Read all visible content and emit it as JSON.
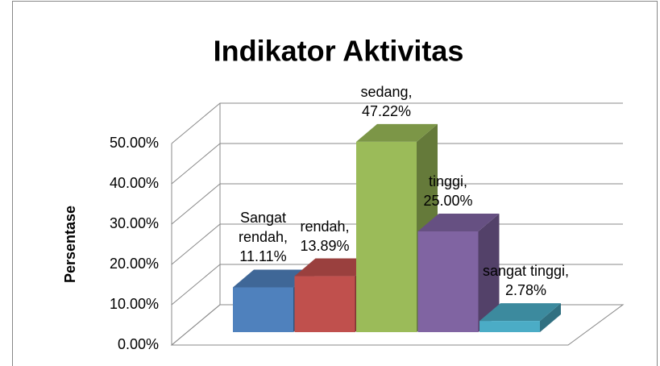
{
  "chart_data": {
    "type": "bar3d",
    "title": "Indikator Aktivitas",
    "y_label": "Persentase",
    "values": [
      11.11,
      13.89,
      47.22,
      25.0,
      2.78
    ],
    "value_labels": [
      "Sangat rendah, 11.11%",
      "rendah, 13.89%",
      "sedang, 47.22%",
      "tinggi, 25.00%",
      "sangat tinggi, 2.78%"
    ],
    "colors": [
      "#4f81bd",
      "#c0504d",
      "#9bbb59",
      "#8064a2",
      "#4bacc6"
    ],
    "ylim": [
      0,
      50
    ],
    "yticks": [
      {
        "value": 0,
        "label": "0.00%"
      },
      {
        "value": 10,
        "label": "10.00%"
      },
      {
        "value": 20,
        "label": "20.00%"
      },
      {
        "value": 30,
        "label": "30.00%"
      },
      {
        "value": 40,
        "label": "40.00%"
      },
      {
        "value": 50,
        "label": "50.00%"
      }
    ],
    "grid": true
  }
}
